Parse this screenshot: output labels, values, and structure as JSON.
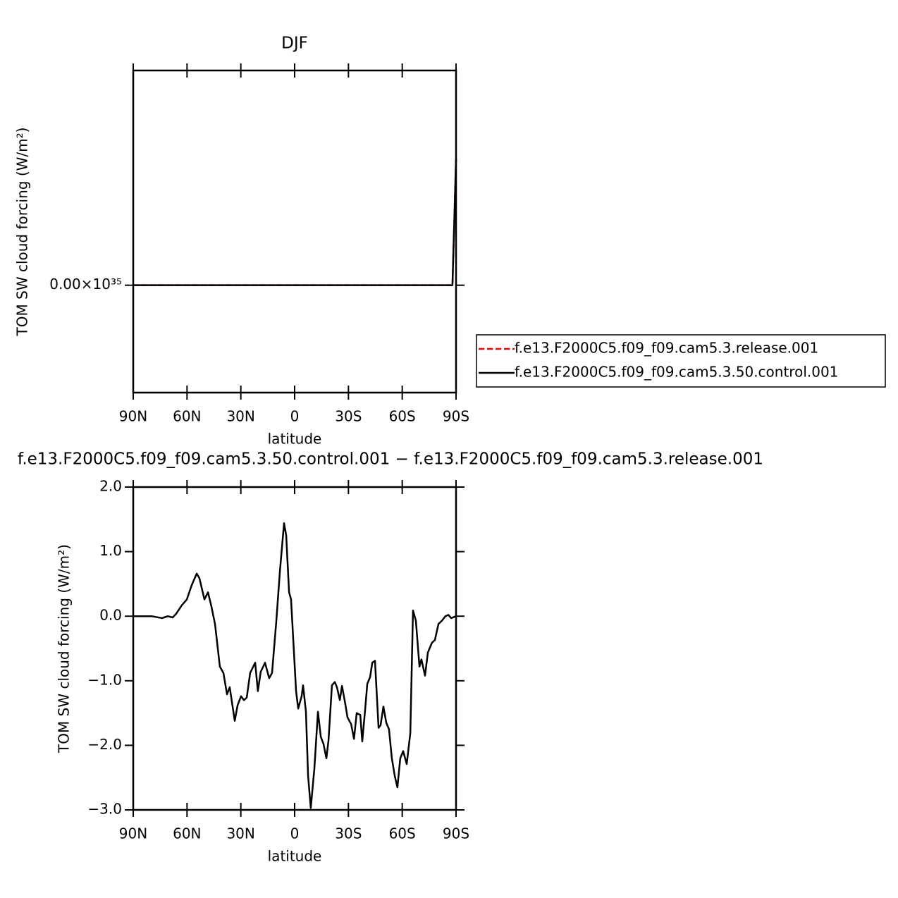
{
  "chart_data": [
    {
      "type": "line",
      "title": "DJF",
      "xlabel": "latitude",
      "ylabel": "TOM SW cloud forcing (W/m²)",
      "x": [
        90,
        60,
        30,
        0,
        -30,
        -60,
        -88,
        -90
      ],
      "series": [
        {
          "name": "f.e13.F2000C5.f09_f09.cam5.3.release.001",
          "color": "#e00000",
          "dash": true,
          "values": [
            0,
            0,
            0,
            0,
            0,
            0,
            0,
            1.18e+35
          ]
        },
        {
          "name": "f.e13.F2000C5.f09_f09.cam5.3.50.control.001",
          "color": "#000000",
          "dash": false,
          "values": [
            0,
            0,
            0,
            0,
            0,
            0,
            0,
            1.18e+35
          ]
        }
      ],
      "xlim": [
        90,
        -90
      ],
      "xticks": [
        {
          "value": 90,
          "label": "90N"
        },
        {
          "value": 60,
          "label": "60N"
        },
        {
          "value": 30,
          "label": "30N"
        },
        0,
        {
          "value": -30,
          "label": "30S"
        },
        {
          "value": -60,
          "label": "60S"
        },
        {
          "value": -90,
          "label": "90S"
        }
      ],
      "ylim": [
        -1e+35,
        2e+35
      ],
      "yticks": [
        {
          "value": 0,
          "label": "0.00×10³⁵"
        }
      ],
      "legend": "right"
    },
    {
      "type": "line",
      "title": "f.e13.F2000C5.f09_f09.cam5.3.50.control.001 − f.e13.F2000C5.f09_f09.cam5.3.release.001",
      "xlabel": "latitude",
      "ylabel": "TOM SW cloud forcing (W/m²)",
      "x": [
        90,
        79.8,
        73.9,
        70.7,
        68,
        66,
        62.9,
        60.1,
        57.4,
        54.6,
        53.1,
        50.3,
        48.3,
        46.4,
        44.4,
        41.7,
        39.7,
        37.7,
        36.2,
        33.4,
        31.8,
        29.9,
        28.3,
        26.7,
        24.8,
        23.6,
        22.0,
        20.5,
        18.9,
        16.5,
        14.2,
        12.6,
        10.2,
        8.2,
        5.9,
        4.7,
        3.1,
        2.0,
        -0.8,
        -2.0,
        -3.9,
        -4.7,
        -6.3,
        -7.5,
        -9.0,
        -11.0,
        -13.0,
        -14.6,
        -16.1,
        -17.7,
        -18.9,
        -20.8,
        -22.4,
        -23.6,
        -25.2,
        -26.4,
        -28.0,
        -29.5,
        -31.5,
        -33.1,
        -34.6,
        -36.6,
        -37.7,
        -39.3,
        -40.5,
        -42.1,
        -43.3,
        -44.8,
        -46.8,
        -47.9,
        -49.5,
        -51.1,
        -52.6,
        -54.2,
        -55.8,
        -57.3,
        -58.9,
        -60.5,
        -62.5,
        -64.5,
        -66.0,
        -67.6,
        -69.6,
        -70.7,
        -72.7,
        -74.3,
        -76.6,
        -78.2,
        -80.2,
        -82.1,
        -84.1,
        -85.7,
        -87.3,
        -90
      ],
      "series": [
        {
          "color": "#000000",
          "dash": false,
          "values": [
            0,
            0,
            -0.03,
            0,
            -0.02,
            0.04,
            0.17,
            0.26,
            0.48,
            0.66,
            0.59,
            0.26,
            0.37,
            0.15,
            -0.12,
            -0.78,
            -0.88,
            -1.21,
            -1.1,
            -1.62,
            -1.38,
            -1.24,
            -1.3,
            -1.26,
            -0.88,
            -0.81,
            -0.72,
            -1.16,
            -0.86,
            -0.72,
            -0.96,
            -0.88,
            -0.07,
            0.7,
            1.44,
            1.25,
            0.37,
            0.26,
            -1.16,
            -1.43,
            -1.24,
            -1.07,
            -1.48,
            -2.47,
            -2.97,
            -2.36,
            -1.48,
            -1.87,
            -1.98,
            -2.2,
            -1.92,
            -1.07,
            -1.02,
            -1.1,
            -1.3,
            -1.08,
            -1.32,
            -1.57,
            -1.67,
            -1.9,
            -1.5,
            -1.53,
            -1.94,
            -1.45,
            -1.05,
            -0.94,
            -0.72,
            -0.69,
            -1.73,
            -1.69,
            -1.4,
            -1.65,
            -1.75,
            -2.2,
            -2.47,
            -2.65,
            -2.2,
            -2.09,
            -2.29,
            -1.81,
            0.09,
            -0.07,
            -0.78,
            -0.67,
            -0.92,
            -0.56,
            -0.41,
            -0.37,
            -0.12,
            -0.07,
            0,
            0.02,
            -0.03,
            0
          ]
        }
      ],
      "xlim": [
        90,
        -90
      ],
      "xticks": [
        {
          "value": 90,
          "label": "90N"
        },
        {
          "value": 60,
          "label": "60N"
        },
        {
          "value": 30,
          "label": "30N"
        },
        0,
        {
          "value": -30,
          "label": "30S"
        },
        {
          "value": -60,
          "label": "60S"
        },
        {
          "value": -90,
          "label": "90S"
        }
      ],
      "ylim": [
        -3,
        2
      ],
      "yticks": [
        {
          "value": -3,
          "label": "−3.0"
        },
        {
          "value": -2,
          "label": "−2.0"
        },
        {
          "value": -1,
          "label": "−1.0"
        },
        {
          "value": 0,
          "label": "0.0"
        },
        {
          "value": 1,
          "label": "1.0"
        },
        {
          "value": 2,
          "label": "2.0"
        }
      ]
    }
  ]
}
